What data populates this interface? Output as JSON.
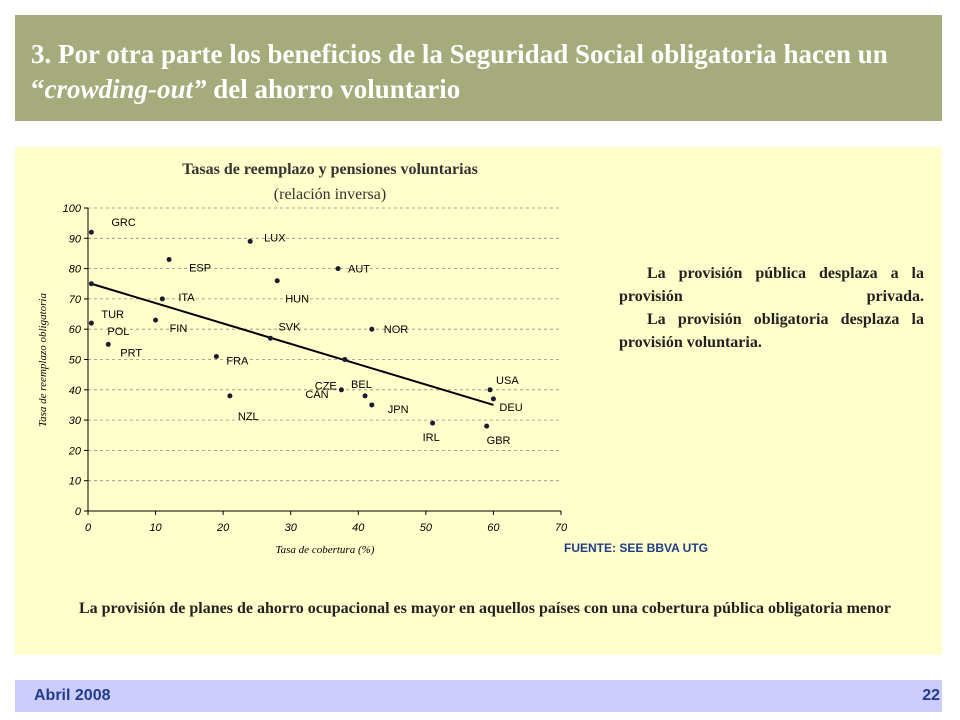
{
  "slide": {
    "title_part1": "3. Por otra parte los beneficios de la Seguridad Social obligatoria hacen un “",
    "title_italic": "crowding-out”",
    "title_part2": " del ahorro voluntario",
    "side_text": [
      "La provisión pública desplaza a la provisión privada.",
      "La provisión obligatoria desplaza la provisión voluntaria."
    ],
    "source": "FUENTE: SEE BBVA UTG",
    "bottom_note": "La provisión de planes de ahorro ocupacional es mayor en aquellos países con una cobertura pública obligatoria menor",
    "footer_date": "Abril 2008",
    "page_number": "22",
    "colors": {
      "header_bg": "#a5ab7a",
      "panel_bg": "#ffffcc",
      "footer_bg": "#ccccff",
      "accent": "#1f3c88"
    }
  },
  "chart_data": {
    "type": "scatter",
    "title": "Tasas de  reemplazo y pensiones voluntarias",
    "subtitle": "(relación inversa)",
    "xlabel": "Tasa de cobertura (%)",
    "ylabel": "Tasa de reemplazo obligatoria",
    "xlim": [
      0,
      70
    ],
    "ylim": [
      0,
      100
    ],
    "xticks": [
      0,
      10,
      20,
      30,
      40,
      50,
      60,
      70
    ],
    "yticks": [
      0,
      10,
      20,
      30,
      40,
      50,
      60,
      70,
      80,
      90,
      100
    ],
    "grid": "horizontal-dashed",
    "points": [
      {
        "label": "GRC",
        "x": 0.5,
        "y": 92
      },
      {
        "label": "LUX",
        "x": 24,
        "y": 89
      },
      {
        "label": "ESP",
        "x": 12,
        "y": 83
      },
      {
        "label": "AUT",
        "x": 37,
        "y": 80
      },
      {
        "label": "HUN",
        "x": 28,
        "y": 76
      },
      {
        "label": "TUR",
        "x": 0.5,
        "y": 75
      },
      {
        "label": "ITA",
        "x": 11,
        "y": 70
      },
      {
        "label": "POL",
        "x": 0.5,
        "y": 62
      },
      {
        "label": "FIN",
        "x": 10,
        "y": 63
      },
      {
        "label": "NOR",
        "x": 42,
        "y": 60
      },
      {
        "label": "SVK",
        "x": 27,
        "y": 57
      },
      {
        "label": "PRT",
        "x": 3,
        "y": 55
      },
      {
        "label": "FRA",
        "x": 19,
        "y": 51
      },
      {
        "label": "CZE",
        "x": 38,
        "y": 50
      },
      {
        "label": "CAN",
        "x": 37.5,
        "y": 40
      },
      {
        "label": "USA",
        "x": 59.5,
        "y": 40
      },
      {
        "label": "BEL",
        "x": 41,
        "y": 38
      },
      {
        "label": "NZL",
        "x": 21,
        "y": 38
      },
      {
        "label": "DEU",
        "x": 60,
        "y": 37
      },
      {
        "label": "JPN",
        "x": 42,
        "y": 35
      },
      {
        "label": "IRL",
        "x": 51,
        "y": 29
      },
      {
        "label": "GBR",
        "x": 59,
        "y": 28
      }
    ],
    "trendline": {
      "x": [
        0.5,
        60
      ],
      "y": [
        75,
        35
      ]
    }
  }
}
